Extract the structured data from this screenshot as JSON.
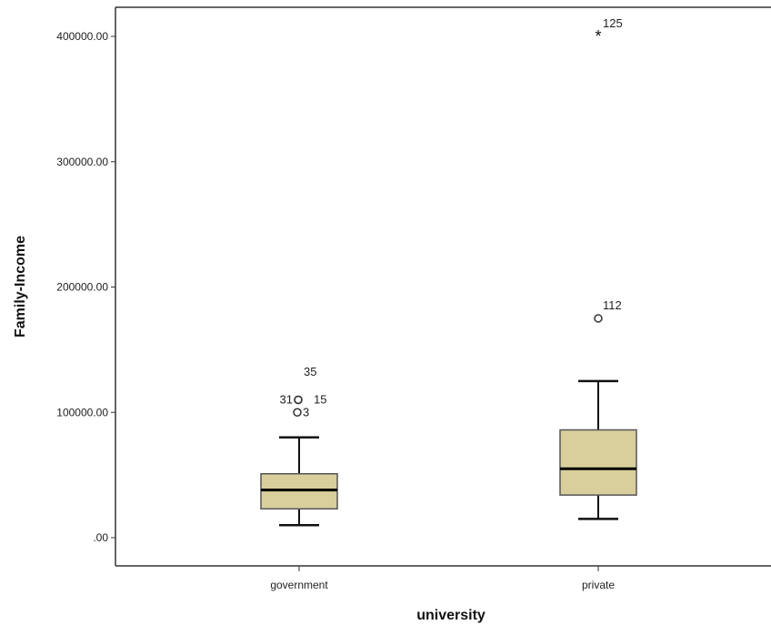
{
  "chart_data": {
    "type": "boxplot",
    "xlabel": "university",
    "ylabel": "Family-Income",
    "ylim": [
      -20000,
      425000
    ],
    "yticks": [
      0,
      100000,
      200000,
      300000,
      400000
    ],
    "ytick_labels": [
      ".00",
      "100000.00",
      "200000.00",
      "300000.00",
      "400000.00"
    ],
    "grid": false,
    "box_color": "#d8cf9c",
    "categories": [
      {
        "label": "government",
        "whisker_low": 10000,
        "q1": 23000,
        "median": 38000,
        "q3": 51000,
        "whisker_high": 80000,
        "outliers": [
          {
            "value": 100000,
            "label": "3",
            "marker": "circle"
          },
          {
            "value": 110000,
            "label": "31",
            "marker": "circle"
          },
          {
            "value": 110000,
            "label": "15",
            "marker": "circle"
          },
          {
            "value": 132000,
            "label": "35",
            "marker": "circle"
          }
        ]
      },
      {
        "label": "private",
        "whisker_low": 15000,
        "q1": 34000,
        "median": 55000,
        "q3": 86000,
        "whisker_high": 125000,
        "outliers": [
          {
            "value": 175000,
            "label": "112",
            "marker": "circle"
          },
          {
            "value": 400000,
            "label": "125",
            "marker": "star"
          }
        ]
      }
    ]
  }
}
